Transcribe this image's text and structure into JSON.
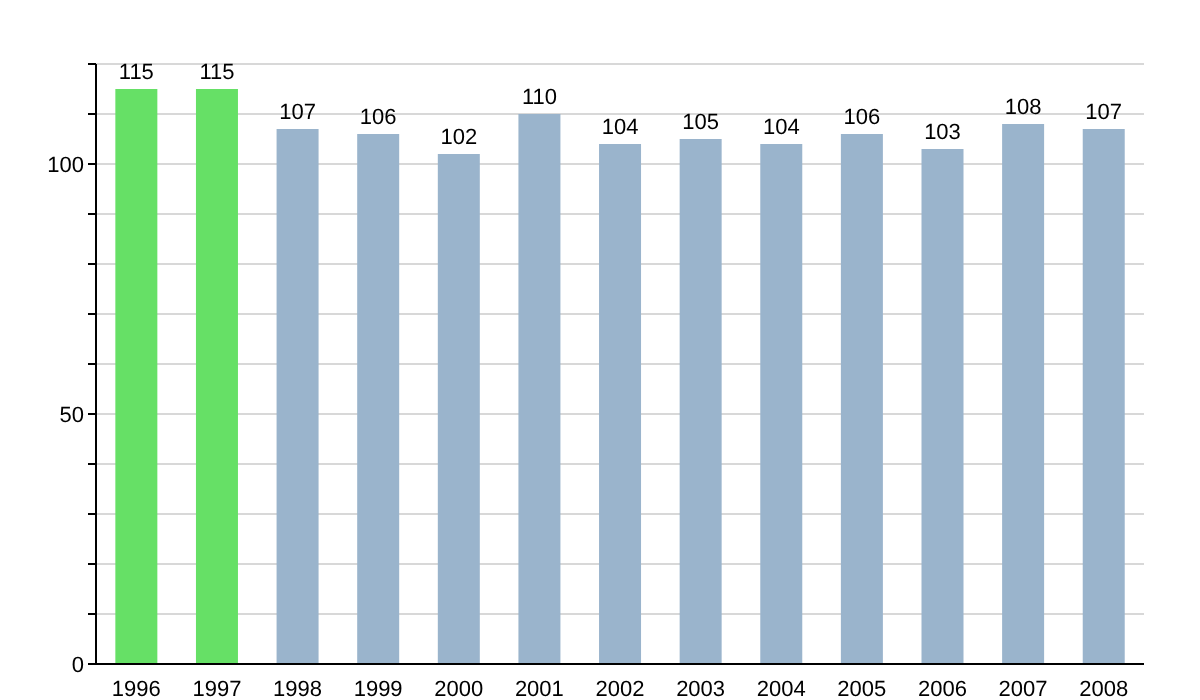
{
  "chart_data": {
    "type": "bar",
    "categories": [
      "1996",
      "1997",
      "1998",
      "1999",
      "2000",
      "2001",
      "2002",
      "2003",
      "2004",
      "2005",
      "2006",
      "2007",
      "2008"
    ],
    "values": [
      115,
      115,
      107,
      106,
      102,
      110,
      104,
      105,
      104,
      106,
      103,
      108,
      107
    ],
    "colors": [
      "#66e066",
      "#66e066",
      "#9ab4cc",
      "#9ab4cc",
      "#9ab4cc",
      "#9ab4cc",
      "#9ab4cc",
      "#9ab4cc",
      "#9ab4cc",
      "#9ab4cc",
      "#9ab4cc",
      "#9ab4cc",
      "#9ab4cc"
    ],
    "ylim": [
      0,
      120
    ],
    "yticks": [
      0,
      {
        "value": 10,
        "label": null
      },
      {
        "value": 20,
        "label": null
      },
      {
        "value": 30,
        "label": null
      },
      {
        "value": 40,
        "label": null
      },
      50,
      {
        "value": 60,
        "label": null
      },
      {
        "value": 70,
        "label": null
      },
      {
        "value": 80,
        "label": null
      },
      {
        "value": 90,
        "label": null
      },
      100,
      {
        "value": 110,
        "label": null
      },
      {
        "value": 120,
        "label": null
      }
    ],
    "grid": "y",
    "data_labels": true
  }
}
